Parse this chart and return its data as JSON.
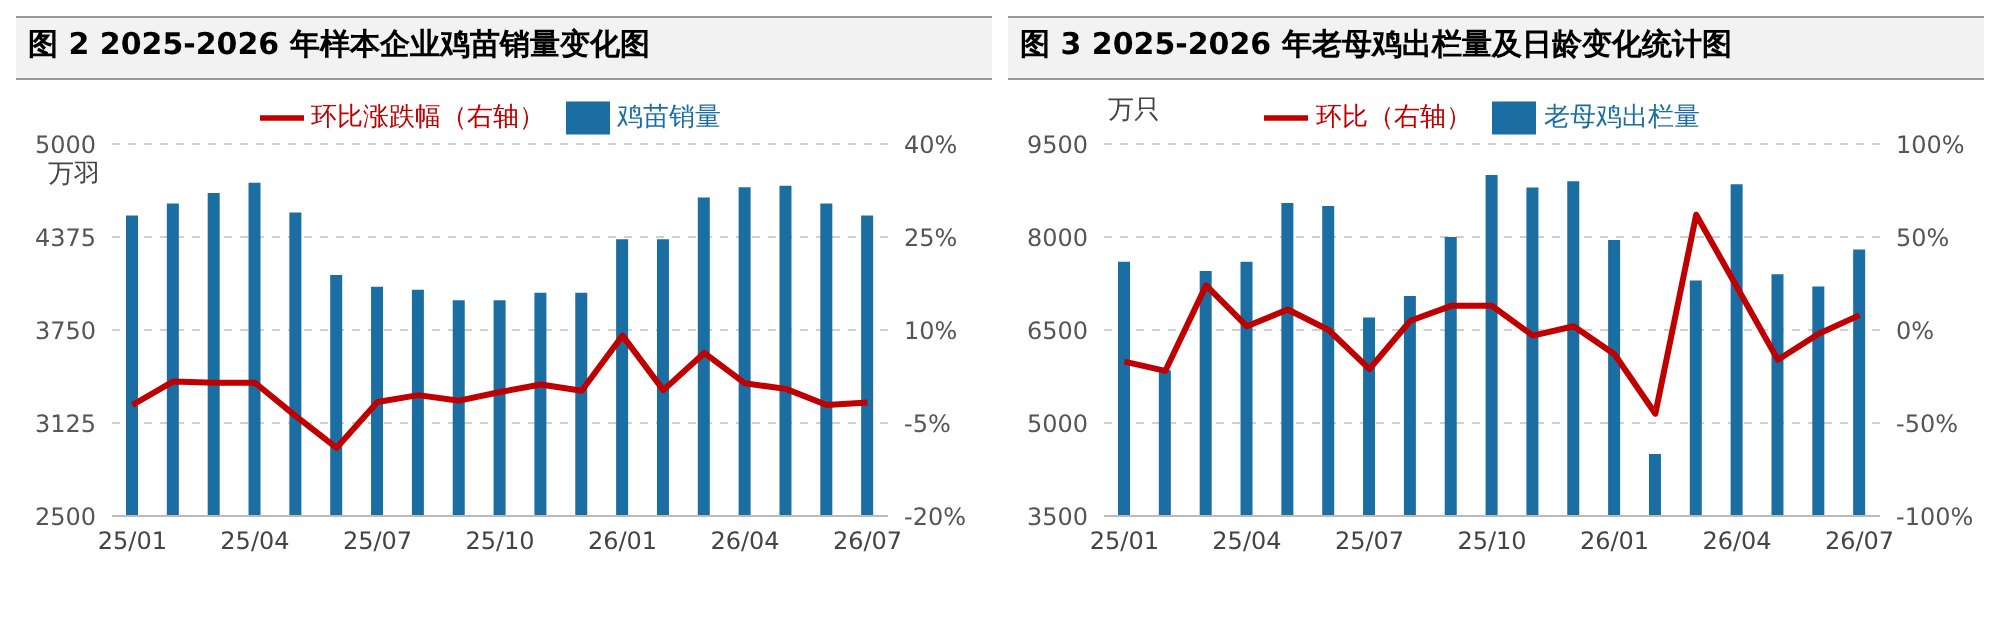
{
  "chart_data": [
    {
      "type": "bar",
      "title": "图 2 2025-2026 年样本企业鸡苗销量变化图",
      "ylabel": "万羽",
      "categories": [
        "25/01",
        null,
        null,
        "25/04",
        null,
        null,
        "25/07",
        null,
        null,
        "25/10",
        null,
        null,
        "26/01",
        null,
        null,
        "26/04",
        null,
        null,
        "26/07"
      ],
      "series": [
        {
          "name": "鸡苗销量",
          "color": "#1b6ea1",
          "values": [
            4520,
            4600,
            4670,
            4740,
            4540,
            4120,
            4040,
            4020,
            3950,
            3950,
            4000,
            4000,
            4360,
            4360,
            4640,
            4710,
            4720,
            4600,
            4520
          ]
        },
        {
          "name": "环比涨跌幅（右轴）",
          "type": "line",
          "axis": "y2",
          "color": "#c00000",
          "values": [
            -2.1,
            1.7,
            1.5,
            1.5,
            -3.9,
            -9.0,
            -1.6,
            -0.5,
            -1.4,
            0.0,
            1.2,
            0.2,
            9.1,
            0.3,
            6.3,
            1.4,
            0.5,
            -2.1,
            -1.7
          ]
        }
      ],
      "ylim": [
        2500,
        5000
      ],
      "yticks": [
        2500,
        3125,
        3750,
        4375,
        5000
      ],
      "y2lim": [
        -20,
        40
      ],
      "y2ticks": [
        {
          "value": -20,
          "label": "-20%"
        },
        {
          "value": -5,
          "label": "-5%"
        },
        {
          "value": 10,
          "label": "10%"
        },
        {
          "value": 25,
          "label": "25%"
        },
        {
          "value": 40,
          "label": "40%"
        }
      ],
      "grid": "y",
      "legend": "top",
      "line_style": "solid"
    },
    {
      "type": "bar",
      "title": "图 3 2025-2026 年老母鸡出栏量及日龄变化统计图",
      "ylabel": "万只",
      "categories": [
        "25/01",
        null,
        null,
        "25/04",
        null,
        null,
        "25/07",
        null,
        null,
        "25/10",
        null,
        null,
        "26/01",
        null,
        null,
        "26/04",
        null,
        null,
        "26/07"
      ],
      "series": [
        {
          "name": "老母鸡出栏量",
          "color": "#1b6ea1",
          "values": [
            7600,
            5850,
            7450,
            7600,
            8550,
            8500,
            6700,
            7050,
            8000,
            9000,
            8800,
            8900,
            7950,
            4500,
            7300,
            8850,
            7400,
            7200,
            7800
          ]
        },
        {
          "name": "环比（右轴）",
          "type": "line",
          "axis": "y2",
          "color": "#c00000",
          "values": [
            -17,
            -22,
            24,
            2,
            11,
            0,
            -21,
            5,
            13,
            13,
            -3,
            2,
            -13,
            -45,
            62,
            23,
            -16,
            -2,
            8
          ]
        }
      ],
      "ylim": [
        3500,
        9500
      ],
      "yticks": [
        3500,
        5000,
        6500,
        8000,
        9500
      ],
      "y2lim": [
        -100,
        100
      ],
      "y2ticks": [
        {
          "value": -100,
          "label": "-100%"
        },
        {
          "value": -50,
          "label": "-50%"
        },
        {
          "value": 0,
          "label": "0%"
        },
        {
          "value": 50,
          "label": "50%"
        },
        {
          "value": 100,
          "label": "100%"
        }
      ],
      "grid": "y",
      "legend": "top",
      "line_style": "solid"
    }
  ]
}
